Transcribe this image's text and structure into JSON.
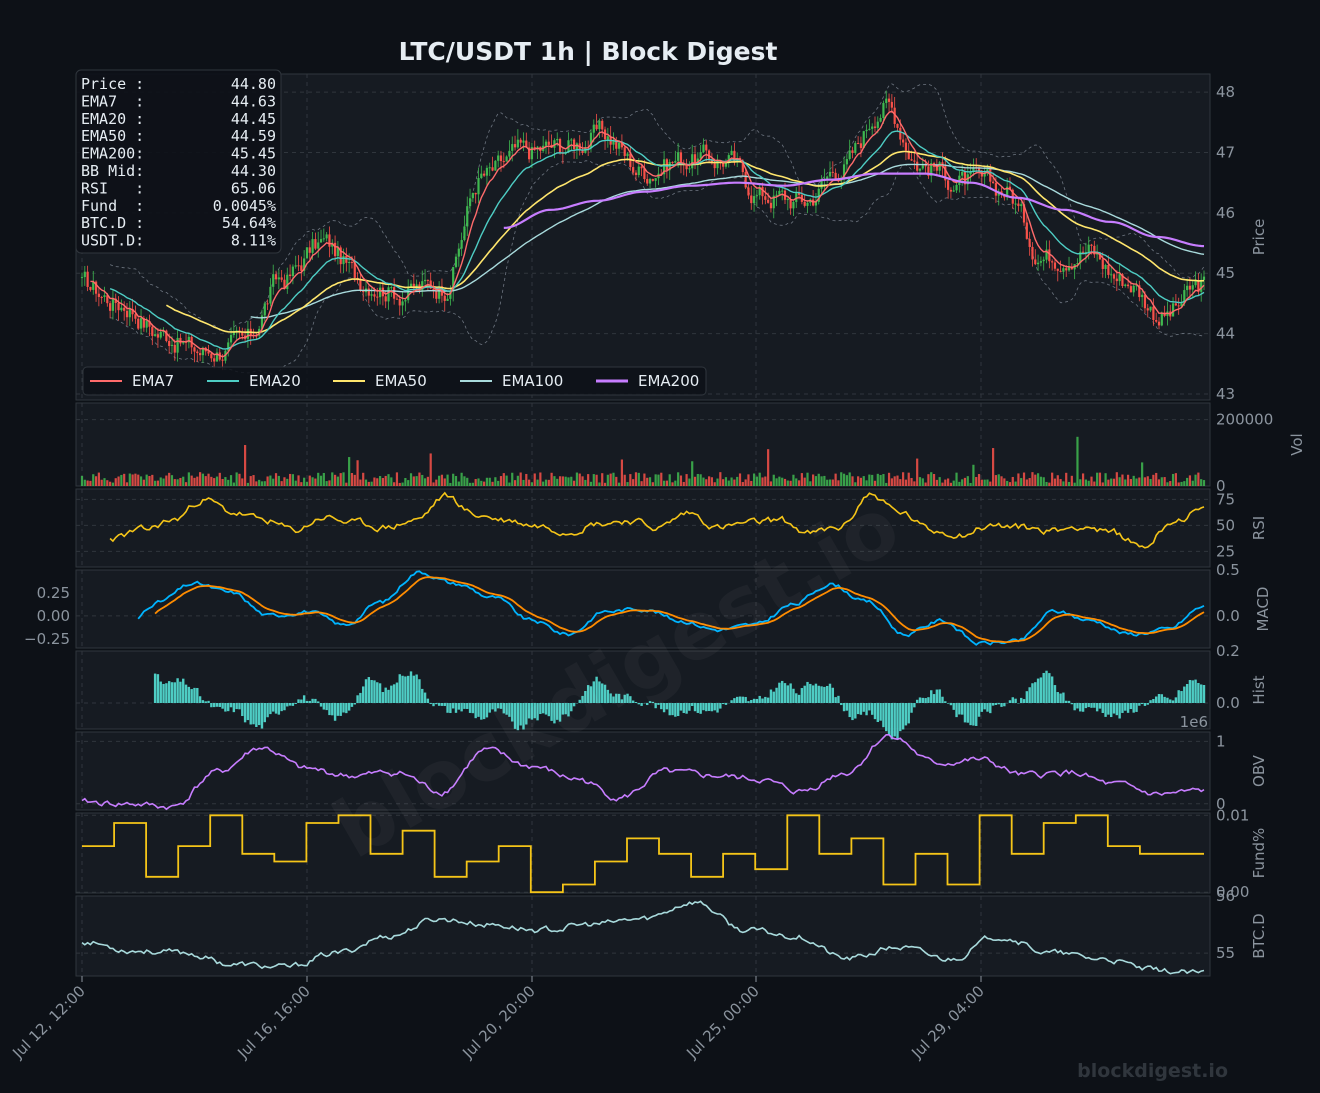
{
  "title": "LTC/USDT  1h  |  Block Digest",
  "watermark_center": "blockdigest.io",
  "watermark_corner": "blockdigest.io",
  "colors": {
    "background": "#0d1117",
    "panel": "#161b22",
    "grid": "#30363d",
    "ema7": "#ff6b6b",
    "ema20": "#4ecdc4",
    "ema50": "#ffe66d",
    "ema100": "#a8dadc",
    "ema200": "#c77dff",
    "rsi": "#f5c518",
    "macd": "#00b4ff",
    "signal": "#ff8c00",
    "hist": "#4ecdc4",
    "obv": "#c77dff",
    "fund": "#f5c518",
    "btcd": "#a8dadc",
    "up": "#3fb950",
    "down": "#f85149"
  },
  "info_box": [
    {
      "label": "Price :",
      "value": "44.80"
    },
    {
      "label": "EMA7  :",
      "value": "44.63"
    },
    {
      "label": "EMA20 :",
      "value": "44.45"
    },
    {
      "label": "EMA50 :",
      "value": "44.59"
    },
    {
      "label": "EMA200:",
      "value": "45.45"
    },
    {
      "label": "BB Mid:",
      "value": "44.30"
    },
    {
      "label": "RSI   :",
      "value": "65.06"
    },
    {
      "label": "Fund  :",
      "value": "0.0045%"
    },
    {
      "label": "BTC.D :",
      "value": "54.64%"
    },
    {
      "label": "USDT.D:",
      "value": "8.11%"
    }
  ],
  "legend": [
    "EMA7",
    "EMA20",
    "EMA50",
    "EMA100",
    "EMA200"
  ],
  "x_ticks": [
    "Jul 12, 12:00",
    "Jul 16, 16:00",
    "Jul 20, 20:00",
    "Jul 25, 00:00",
    "Jul 29, 04:00"
  ],
  "panels": [
    {
      "id": "price",
      "ylabel": "Price",
      "ticks": [
        "48",
        "47",
        "46",
        "45",
        "44",
        "43"
      ]
    },
    {
      "id": "vol",
      "ylabel": "Vol",
      "ticks": [
        "200000",
        "0"
      ]
    },
    {
      "id": "rsi",
      "ylabel": "RSI",
      "ticks": [
        "75",
        "50",
        "25"
      ]
    },
    {
      "id": "macd",
      "ylabel": "MACD",
      "ticks": [
        "0.5",
        "0.0"
      ],
      "left_ticks": [
        "0.25",
        "0.00",
        "−0.25"
      ]
    },
    {
      "id": "hist",
      "ylabel": "Hist",
      "ticks": [
        "0.2",
        "0.0"
      ],
      "offset": "1e6"
    },
    {
      "id": "obv",
      "ylabel": "OBV",
      "ticks": [
        "1",
        "0"
      ]
    },
    {
      "id": "fund",
      "ylabel": "Fund%",
      "ticks": [
        "0.01",
        "0.00"
      ]
    },
    {
      "id": "btcd",
      "ylabel": "BTC.D",
      "ticks": [
        "56",
        "55"
      ]
    }
  ],
  "chart_data": {
    "type": "line",
    "title": "LTC/USDT  1h  |  Block Digest",
    "x_ticks": [
      "Jul 12, 12:00",
      "Jul 16, 16:00",
      "Jul 20, 20:00",
      "Jul 25, 00:00",
      "Jul 29, 04:00"
    ],
    "price": {
      "ylim": [
        42.9,
        48.3
      ],
      "close_anchors": [
        44.8,
        44.5,
        44.0,
        43.7,
        43.8,
        44.9,
        45.5,
        44.9,
        44.7,
        44.8,
        46.6,
        47.0,
        47.1,
        47.3,
        46.7,
        46.9,
        46.9,
        46.3,
        46.2,
        46.8,
        47.8,
        46.8,
        46.5,
        46.4,
        45.3,
        45.4,
        44.9,
        44.3,
        44.8
      ],
      "ema200_anchors": [
        45.75,
        46.05,
        46.2,
        46.35,
        46.45,
        46.5,
        46.45,
        46.55,
        46.65,
        46.65,
        46.5,
        46.25,
        46.05,
        45.85,
        45.6,
        45.45
      ],
      "series": [
        {
          "name": "EMA7",
          "last": 44.63
        },
        {
          "name": "EMA20",
          "last": 44.45
        },
        {
          "name": "EMA50",
          "last": 44.59
        },
        {
          "name": "EMA100",
          "last": 44.97
        },
        {
          "name": "EMA200",
          "last": 45.45
        }
      ]
    },
    "volume": {
      "ylim": [
        0,
        250000
      ],
      "typical": 30000,
      "spikes": [
        140000,
        150000,
        120000,
        110000,
        100000
      ]
    },
    "rsi": {
      "ylim": [
        10,
        85
      ],
      "anchors": [
        25,
        38,
        45,
        55,
        75,
        62,
        55,
        45,
        58,
        52,
        48,
        55,
        78,
        60,
        55,
        50,
        45,
        52,
        55,
        48,
        62,
        48,
        52,
        55,
        42,
        48,
        80,
        62,
        45,
        42,
        50,
        48,
        45,
        50,
        42,
        30,
        55,
        65
      ]
    },
    "macd": {
      "ylim": [
        -0.35,
        0.5
      ],
      "macd_anchors": [
        -0.28,
        -0.25,
        0.15,
        0.35,
        0.25,
        0.0,
        0.05,
        -0.1,
        0.15,
        0.48,
        0.35,
        0.2,
        -0.05,
        -0.2,
        0.05,
        0.08,
        -0.05,
        -0.15,
        -0.1,
        0.12,
        0.35,
        0.15,
        -0.2,
        -0.05,
        -0.3,
        -0.28,
        0.05,
        -0.05,
        -0.2,
        -0.15,
        0.1
      ]
    },
    "histogram": {
      "ylim": [
        -0.1,
        0.2
      ]
    },
    "obv": {
      "ylim": [
        -0.1,
        1.15
      ],
      "unit_offset": "1e6",
      "anchors": [
        0.02,
        0.0,
        -0.05,
        0.5,
        0.9,
        0.55,
        0.45,
        0.5,
        0.2,
        0.85,
        0.6,
        0.4,
        0.1,
        0.5,
        0.45,
        0.4,
        0.2,
        0.5,
        1.1,
        0.65,
        0.7,
        0.45,
        0.5,
        0.3,
        0.15,
        0.2
      ]
    },
    "funding": {
      "ylim": [
        0.0,
        0.01
      ],
      "steps": [
        0.006,
        0.009,
        0.002,
        0.006,
        0.01,
        0.005,
        0.004,
        0.009,
        0.01,
        0.005,
        0.008,
        0.002,
        0.004,
        0.006,
        0.0,
        0.001,
        0.004,
        0.007,
        0.005,
        0.002,
        0.005,
        0.003,
        0.01,
        0.005,
        0.007,
        0.001,
        0.005,
        0.001,
        0.01,
        0.005,
        0.009,
        0.01,
        0.006,
        0.005,
        0.005
      ]
    },
    "btc_dominance": {
      "ylim": [
        54.6,
        56.0
      ],
      "anchors": [
        55.2,
        55.05,
        55.0,
        54.8,
        54.75,
        55.0,
        55.3,
        55.6,
        55.5,
        55.4,
        55.5,
        55.6,
        55.9,
        55.4,
        55.3,
        54.9,
        55.1,
        54.9,
        55.3,
        55.0,
        54.9,
        54.7,
        54.64
      ]
    }
  }
}
